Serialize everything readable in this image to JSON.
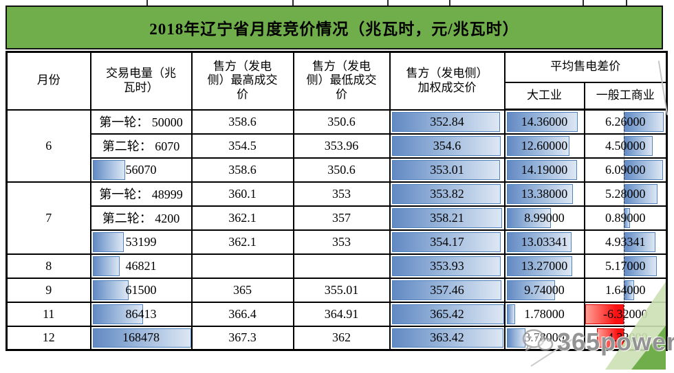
{
  "title": "2018年辽宁省月度竞价情况（兆瓦时，元/兆瓦时）",
  "colors": {
    "banner_green": "#6fae4a",
    "bar_blue": "#638ec6",
    "bar_blue_light": "#dde7f4",
    "bar_red": "#fb1111",
    "corner_green_light": "#cbe0b4",
    "corner_green_dark": "#6fae4a"
  },
  "watermark": {
    "text": "365power",
    "icon": "wechat-icon"
  },
  "table": {
    "headers": {
      "month": "月份",
      "volume": "交易电量（兆\n瓦时）",
      "high": "售方（发电\n侧）最高成交\n价",
      "low": "售方（发电\n侧）最低成交\n价",
      "weighted": "售方（发电侧）\n加权成交价",
      "diff": "平均售电差价",
      "industry": "大工业",
      "general": "一般工商业"
    },
    "bar_config": {
      "volume_max": 168478,
      "weighted_max": 365.42,
      "industry_max": 14.36,
      "industry_fill_pct": 91,
      "general_max": 6.32,
      "general_axis_pct": 48.3,
      "general_pos_span": 50,
      "general_neg_span": 48.3
    },
    "rows": [
      {
        "month": "6",
        "volume_text": "第一轮：  50000",
        "high": "358.6",
        "low": "350.6",
        "weighted": "352.84",
        "industry": "14.36000",
        "general": "6.26000"
      },
      {
        "volume_text": "第二轮：  6070",
        "high": "354.5",
        "low": "353.96",
        "weighted": "354.6",
        "industry": "12.60000",
        "general": "4.50000"
      },
      {
        "volume_text": "56070",
        "high": "358.6",
        "low": "350.6",
        "weighted": "353.01",
        "industry": "14.19000",
        "general": "6.09000"
      },
      {
        "month": "7",
        "volume_text": "第一轮：  48999",
        "high": "360.1",
        "low": "353",
        "weighted": "353.82",
        "industry": "13.38000",
        "general": "5.28000"
      },
      {
        "volume_text": "第二轮：  4200",
        "high": "362.1",
        "low": "357",
        "weighted": "358.21",
        "industry": "8.99000",
        "general": "0.89000"
      },
      {
        "volume_text": "53199",
        "high": "362.1",
        "low": "353",
        "weighted": "354.17",
        "industry": "13.03341",
        "general": "4.93341"
      },
      {
        "month": "8",
        "volume_text": "46821",
        "high": "",
        "low": "",
        "weighted": "353.93",
        "industry": "13.27000",
        "general": "5.17000"
      },
      {
        "month": "9",
        "volume_text": "61500",
        "high": "365",
        "low": "355.01",
        "weighted": "357.46",
        "industry": "9.74000",
        "general": "1.64000"
      },
      {
        "month": "11",
        "volume_text": "86413",
        "high": "366.4",
        "low": "364.91",
        "weighted": "365.42",
        "industry": "1.78000",
        "general": "-6.32000"
      },
      {
        "month": "12",
        "volume_text": "168478",
        "high": "367.3",
        "low": "362",
        "weighted": "363.42",
        "industry": "3.78000",
        "general": "-4.32000"
      }
    ]
  },
  "chart_data": {
    "type": "table",
    "title": "2018年辽宁省月度竞价情况（兆瓦时，元/兆瓦时）",
    "columns": [
      "月份",
      "交易电量（兆瓦时）",
      "售方（发电侧）最高成交价",
      "售方（发电侧）最低成交价",
      "售方（发电侧）加权成交价",
      "平均售电差价-大工业",
      "平均售电差价-一般工商业"
    ],
    "rows": [
      [
        "6",
        "第一轮：50000",
        358.6,
        350.6,
        352.84,
        14.36,
        6.26
      ],
      [
        "6",
        "第二轮：6070",
        354.5,
        353.96,
        354.6,
        12.6,
        4.5
      ],
      [
        "6",
        "56070",
        358.6,
        350.6,
        353.01,
        14.19,
        6.09
      ],
      [
        "7",
        "第一轮：48999",
        360.1,
        353,
        353.82,
        13.38,
        5.28
      ],
      [
        "7",
        "第二轮：4200",
        362.1,
        357,
        358.21,
        8.99,
        0.89
      ],
      [
        "7",
        "53199",
        362.1,
        353,
        354.17,
        13.03341,
        4.93341
      ],
      [
        "8",
        "46821",
        null,
        null,
        353.93,
        13.27,
        5.17
      ],
      [
        "9",
        "61500",
        365,
        355.01,
        357.46,
        9.74,
        1.64
      ],
      [
        "11",
        "86413",
        366.4,
        364.91,
        365.42,
        1.78,
        -6.32
      ],
      [
        "12",
        "168478",
        367.3,
        362,
        363.42,
        3.78,
        -4.32
      ]
    ],
    "layout_hints": {
      "databar_columns": [
        "交易电量（兆瓦时）",
        "售方（发电侧）加权成交价",
        "平均售电差价-大工业",
        "平均售电差价-一般工商业"
      ],
      "negative_bar_color": "red",
      "positive_bar_color": "blue",
      "general_column_axis": "dashed vertical line at ~48% of cell, negatives extend left"
    }
  }
}
